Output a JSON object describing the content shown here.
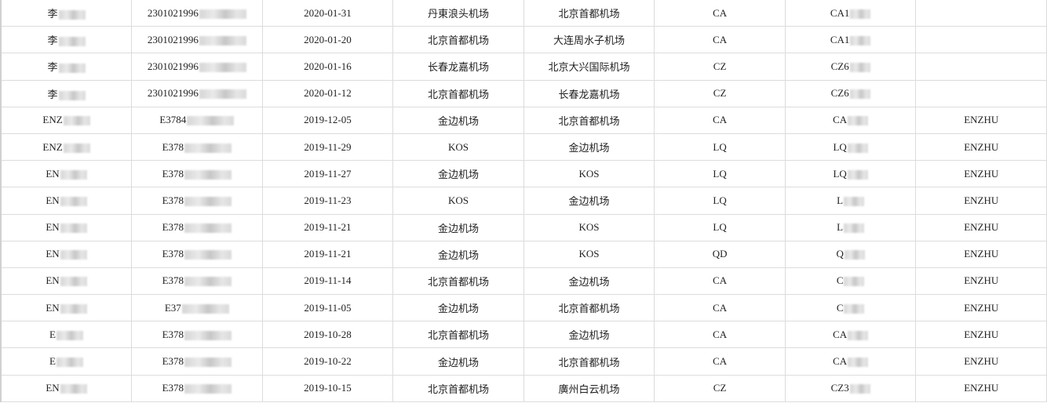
{
  "rows": [
    [
      "李",
      "2301021996",
      "2020-01-31",
      "丹東浪头机场",
      "北京首都机场",
      "CA",
      "CA1",
      ""
    ],
    [
      "李",
      "2301021996",
      "2020-01-20",
      "北京首都机场",
      "大连周水子机场",
      "CA",
      "CA1",
      ""
    ],
    [
      "李",
      "2301021996",
      "2020-01-16",
      "长春龙嘉机场",
      "北京大兴国际机场",
      "CZ",
      "CZ6",
      ""
    ],
    [
      "李",
      "2301021996",
      "2020-01-12",
      "北京首都机场",
      "长春龙嘉机场",
      "CZ",
      "CZ6",
      ""
    ],
    [
      "ENZ",
      "E3784",
      "2019-12-05",
      "金边机场",
      "北京首都机场",
      "CA",
      "CA",
      "ENZHU"
    ],
    [
      "ENZ",
      "E378",
      "2019-11-29",
      "KOS",
      "金边机场",
      "LQ",
      "LQ",
      "ENZHU"
    ],
    [
      "EN",
      "E378",
      "2019-11-27",
      "金边机场",
      "KOS",
      "LQ",
      "LQ",
      "ENZHU"
    ],
    [
      "EN",
      "E378",
      "2019-11-23",
      "KOS",
      "金边机场",
      "LQ",
      "L",
      "ENZHU"
    ],
    [
      "EN",
      "E378",
      "2019-11-21",
      "金边机场",
      "KOS",
      "LQ",
      "L",
      "ENZHU"
    ],
    [
      "EN",
      "E378",
      "2019-11-21",
      "金边机场",
      "KOS",
      "QD",
      "Q",
      "ENZHU"
    ],
    [
      "EN",
      "E378",
      "2019-11-14",
      "北京首都机场",
      "金边机场",
      "CA",
      "C",
      "ENZHU"
    ],
    [
      "EN",
      "E37",
      "2019-11-05",
      "金边机场",
      "北京首都机场",
      "CA",
      "C",
      "ENZHU"
    ],
    [
      "E",
      "E378",
      "2019-10-28",
      "北京首都机场",
      "金边机场",
      "CA",
      "CA",
      "ENZHU"
    ],
    [
      "E",
      "E378",
      "2019-10-22",
      "金边机场",
      "北京首都机场",
      "CA",
      "CA",
      "ENZHU"
    ],
    [
      "EN",
      "E378",
      "2019-10-15",
      "北京首都机场",
      "廣州白云机场",
      "CZ",
      "CZ3",
      "ENZHU"
    ]
  ]
}
